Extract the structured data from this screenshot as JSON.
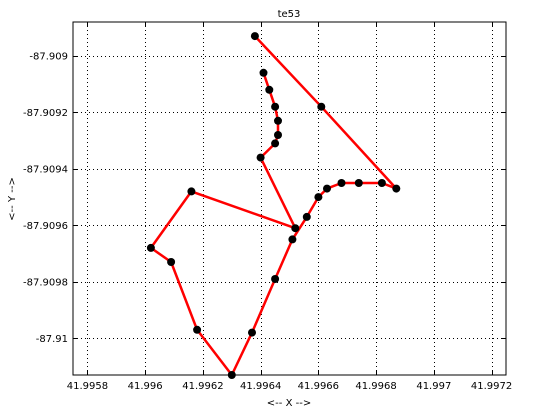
{
  "chart_data": {
    "type": "line",
    "title": "te53",
    "xlabel": "<-- X -->",
    "ylabel": "<-- Y -->",
    "xlim": [
      41.99575,
      41.99725
    ],
    "ylim": [
      -87.91013,
      -87.90888
    ],
    "grid": true,
    "xticks": [
      41.9958,
      41.996,
      41.9962,
      41.9964,
      41.9966,
      41.9968,
      41.997,
      41.9972
    ],
    "xtick_labels": [
      "41.9958",
      "41.996",
      "41.9962",
      "41.9964",
      "41.9966",
      "41.9968",
      "41.997",
      "41.9972"
    ],
    "yticks": [
      -87.909,
      -87.9092,
      -87.9094,
      -87.9096,
      -87.9098,
      -87.91
    ],
    "ytick_labels": [
      "-87.909",
      "-87.9092",
      "-87.9094",
      "-87.9096",
      "-87.9098",
      "-87.91"
    ],
    "line_color": "#ff0000",
    "marker_color": "#000000",
    "series": [
      {
        "x": [
          41.99638,
          41.99661,
          41.99687,
          41.99682,
          41.99674,
          41.99668,
          41.99663,
          41.9966,
          41.99656,
          41.99651,
          41.99645,
          41.99637,
          41.9963,
          41.99618,
          41.99609,
          41.99602,
          41.99616,
          41.99652,
          41.9964,
          41.99645,
          41.99646,
          41.99646,
          41.99645,
          41.99643,
          41.99641
        ],
        "y": [
          -87.90893,
          -87.90918,
          -87.90947,
          -87.90945,
          -87.90945,
          -87.90945,
          -87.90947,
          -87.9095,
          -87.90957,
          -87.90965,
          -87.90979,
          -87.90998,
          -87.91013,
          -87.90997,
          -87.90973,
          -87.90968,
          -87.90948,
          -87.90961,
          -87.90936,
          -87.90931,
          -87.90928,
          -87.90923,
          -87.90918,
          -87.90912,
          -87.90906
        ]
      }
    ]
  }
}
